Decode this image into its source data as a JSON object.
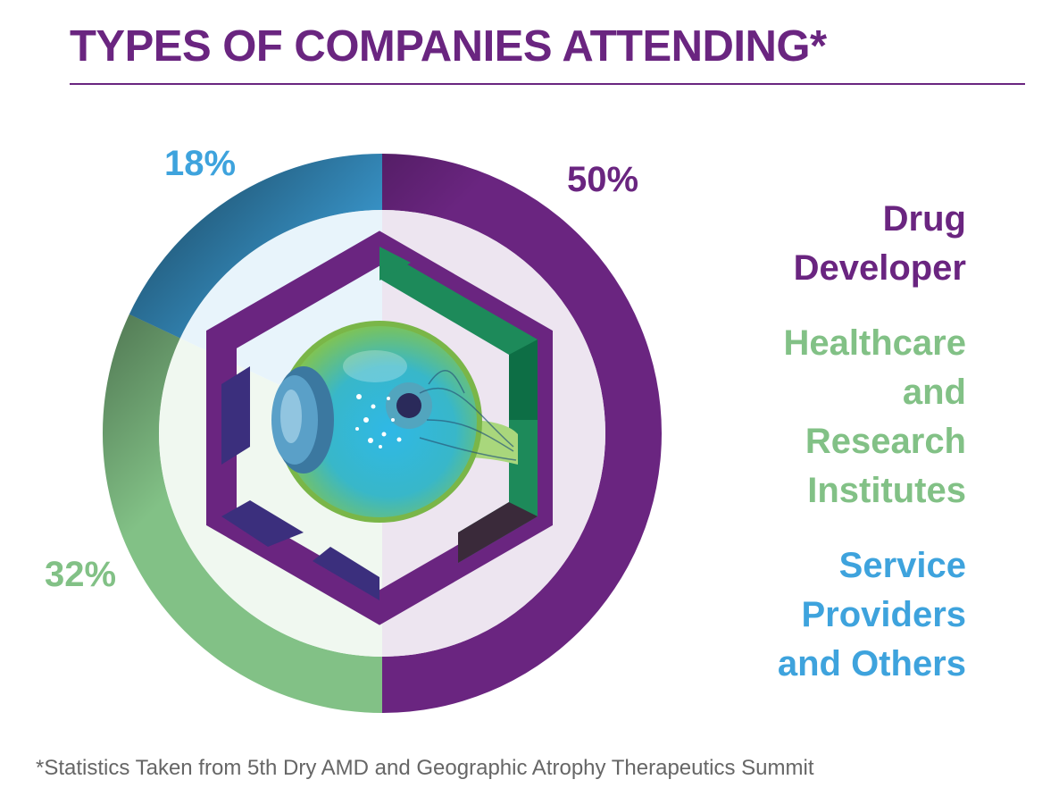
{
  "title": "TYPES OF COMPANIES ATTENDING*",
  "footnote": "*Statistics Taken from 5th Dry AMD and Geographic Atrophy Therapeutics Summit",
  "colors": {
    "drug": "#6a2580",
    "healthcare": "#82c186",
    "service": "#3ea3dd",
    "title": "#6a2580"
  },
  "chart_data": {
    "type": "pie",
    "variant": "donut",
    "title": "TYPES OF COMPANIES ATTENDING*",
    "slices": [
      {
        "label": "Drug Developer",
        "legend_lines": [
          "Drug",
          "Developer"
        ],
        "value": 50,
        "value_label": "50%",
        "color": "#6a2580"
      },
      {
        "label": "Healthcare and Research Institutes",
        "legend_lines": [
          "Healthcare",
          "and",
          "Research",
          "Institutes"
        ],
        "value": 32,
        "value_label": "32%",
        "color": "#82c186"
      },
      {
        "label": "Service Providers and Others",
        "legend_lines": [
          "Service",
          "Providers",
          "and Others"
        ],
        "value": 18,
        "value_label": "18%",
        "color": "#3ea3dd"
      }
    ],
    "legend_position": "right"
  },
  "center_graphic": {
    "icon": "eye-in-hexagon-icon"
  }
}
